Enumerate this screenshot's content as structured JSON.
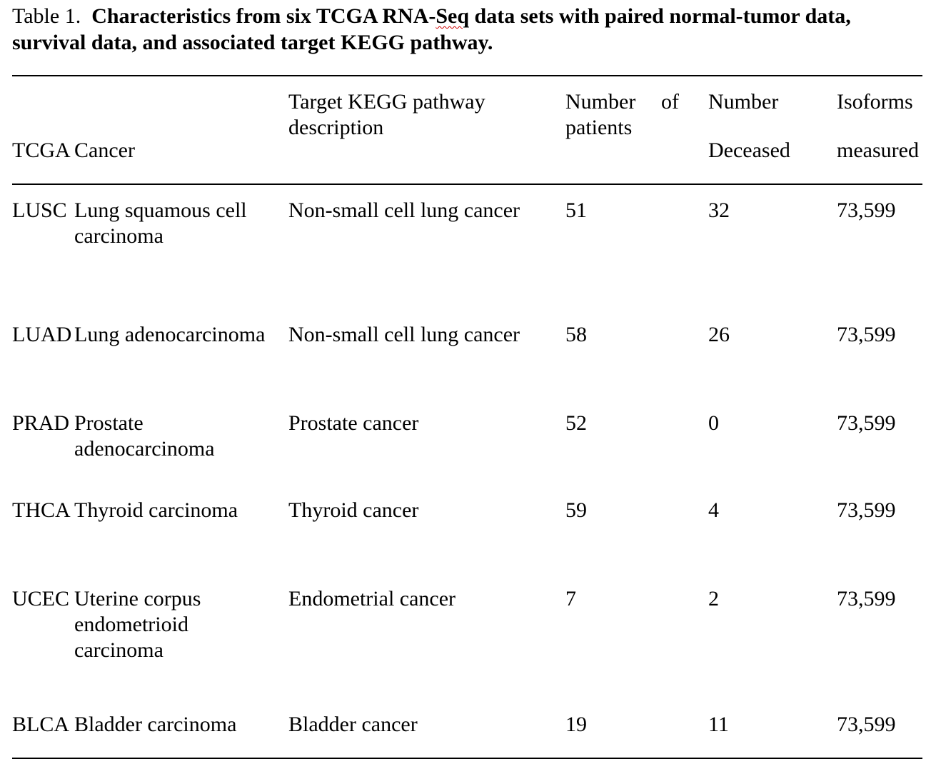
{
  "table": {
    "caption_label": "Table 1.",
    "caption_title_a": "Characteristics from six TCGA RNA-",
    "caption_title_b": "Seq",
    "caption_title_c": " data sets with paired normal-tumor data, survival data, and associated target KEGG pathway.",
    "headers": {
      "tcga": "TCGA",
      "cancer": "Cancer",
      "pathway_line1": "Target KEGG pathway",
      "pathway_line2": "description",
      "patients_line1a": "Number",
      "patients_line1b": "of",
      "patients_line2": "patients",
      "deceased_line1": "Number",
      "deceased_line2": "Deceased",
      "isoforms_line1": "Isoforms",
      "isoforms_line2": "measured"
    },
    "rows": [
      {
        "tcga": "LUSC",
        "cancer_lines": [
          "Lung squamous cell",
          "carcinoma"
        ],
        "pathway": "Non-small cell lung cancer",
        "patients": "51",
        "deceased": "32",
        "isoforms": "73,599"
      },
      {
        "tcga": "LUAD",
        "cancer_lines": [
          "Lung adenocarcinoma"
        ],
        "pathway": "Non-small cell lung cancer",
        "patients": "58",
        "deceased": "26",
        "isoforms": "73,599"
      },
      {
        "tcga": "PRAD",
        "cancer_lines": [
          "Prostate",
          "adenocarcinoma"
        ],
        "pathway": "Prostate cancer",
        "patients": "52",
        "deceased": "0",
        "isoforms": "73,599"
      },
      {
        "tcga": "THCA",
        "cancer_lines": [
          "Thyroid carcinoma"
        ],
        "pathway": "Thyroid cancer",
        "patients": "59",
        "deceased": "4",
        "isoforms": "73,599"
      },
      {
        "tcga": "UCEC",
        "cancer_lines": [
          "Uterine corpus",
          "endometrioid",
          "carcinoma"
        ],
        "pathway": "Endometrial cancer",
        "patients": "7",
        "deceased": "2",
        "isoforms": "73,599"
      },
      {
        "tcga": "BLCA",
        "cancer_lines": [
          "Bladder carcinoma"
        ],
        "pathway": "Bladder cancer",
        "patients": "19",
        "deceased": "11",
        "isoforms": "73,599"
      }
    ]
  }
}
